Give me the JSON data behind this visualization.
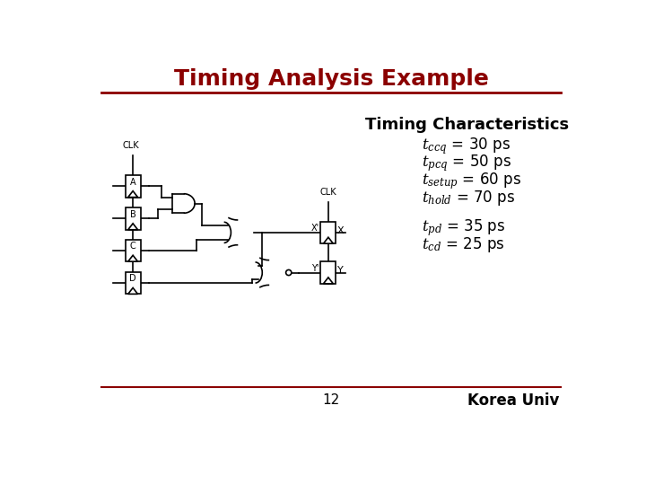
{
  "title": "Timing Analysis Example",
  "title_color": "#8B0000",
  "title_fontsize": 18,
  "title_fontweight": "bold",
  "subtitle": "Timing Characteristics",
  "subtitle_fontsize": 13,
  "subtitle_fontweight": "bold",
  "characteristics": [
    {
      "label": "$t_{ccq}$",
      "value": " = 30 ps"
    },
    {
      "label": "$t_{pcq}$",
      "value": " = 50 ps"
    },
    {
      "label": "$t_{setup}$",
      "value": " = 60 ps"
    },
    {
      "label": "$t_{hold}$",
      "value": " = 70 ps"
    },
    {
      "label": "$t_{pd}$",
      "value": " = 35 ps"
    },
    {
      "label": "$t_{cd}$",
      "value": " = 25 ps"
    }
  ],
  "footer_text": "12",
  "footer_right": "Korea Univ",
  "background_color": "#ffffff",
  "line_color": "#8B0000",
  "text_color": "#000000",
  "circuit_scale": 1.0
}
